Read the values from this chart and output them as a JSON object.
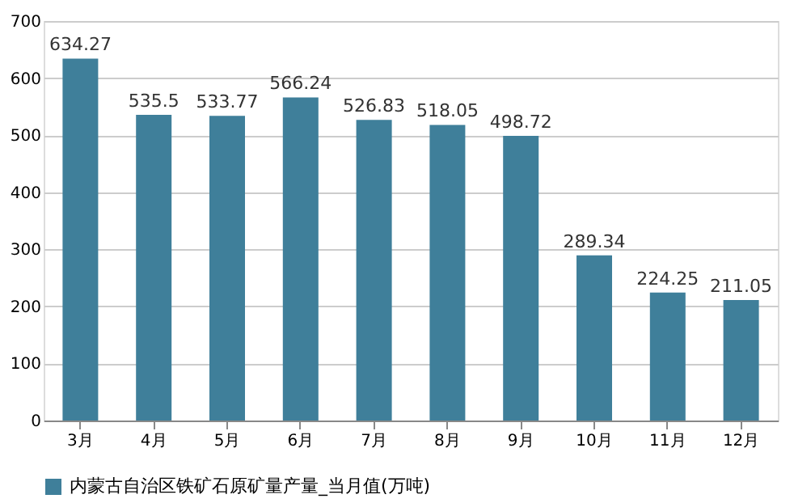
{
  "chart_data": {
    "type": "bar",
    "categories": [
      "3月",
      "4月",
      "5月",
      "6月",
      "7月",
      "8月",
      "9月",
      "10月",
      "11月",
      "12月"
    ],
    "series": [
      {
        "name": "内蒙古自治区铁矿石原矿量产量_当月值(万吨)",
        "color": "#3f7f9a",
        "values": [
          634.27,
          535.5,
          533.77,
          566.24,
          526.83,
          518.05,
          498.72,
          289.34,
          224.25,
          211.05
        ]
      }
    ],
    "ylim": [
      0,
      700
    ],
    "yticks": [
      0,
      100,
      200,
      300,
      400,
      500,
      600,
      700
    ],
    "grid": "y",
    "legend": "bottom",
    "data_labels": true
  }
}
